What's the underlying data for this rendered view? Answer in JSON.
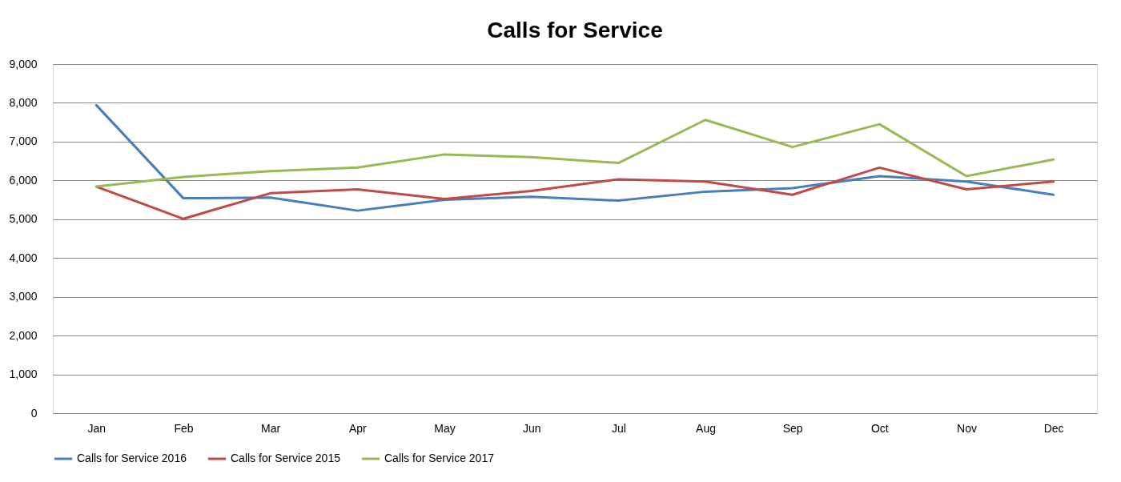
{
  "chart_data": {
    "type": "line",
    "title": "Calls for Service",
    "categories": [
      "Jan",
      "Feb",
      "Mar",
      "Apr",
      "May",
      "Jun",
      "Jul",
      "Aug",
      "Sep",
      "Oct",
      "Nov",
      "Dec"
    ],
    "series": [
      {
        "name": "Calls for Service 2016",
        "color": "#4a7ebb",
        "values": [
          7940,
          5540,
          5560,
          5220,
          5500,
          5580,
          5480,
          5710,
          5800,
          6110,
          5970,
          5630
        ]
      },
      {
        "name": "Calls for Service 2015",
        "color": "#be4b48",
        "values": [
          5840,
          5010,
          5670,
          5770,
          5520,
          5730,
          6030,
          5970,
          5630,
          6330,
          5770,
          5970
        ]
      },
      {
        "name": "Calls for Service 2017",
        "color": "#98b954",
        "values": [
          5840,
          6090,
          6240,
          6330,
          6670,
          6600,
          6450,
          7560,
          6860,
          7450,
          6110,
          6540
        ]
      }
    ],
    "ylim": [
      0,
      9000
    ],
    "yticks": [
      0,
      {
        "value": 1000,
        "label": "1,000"
      },
      {
        "value": 2000,
        "label": "2,000"
      },
      {
        "value": 3000,
        "label": "3,000"
      },
      {
        "value": 4000,
        "label": "4,000"
      },
      {
        "value": 5000,
        "label": "5,000"
      },
      {
        "value": 6000,
        "label": "6,000"
      },
      {
        "value": 7000,
        "label": "7,000"
      },
      {
        "value": 8000,
        "label": "8,000"
      },
      {
        "value": 9000,
        "label": "9,000"
      }
    ],
    "grid": "y",
    "legend": "bottom",
    "marker": "none",
    "line_style": "solid"
  }
}
